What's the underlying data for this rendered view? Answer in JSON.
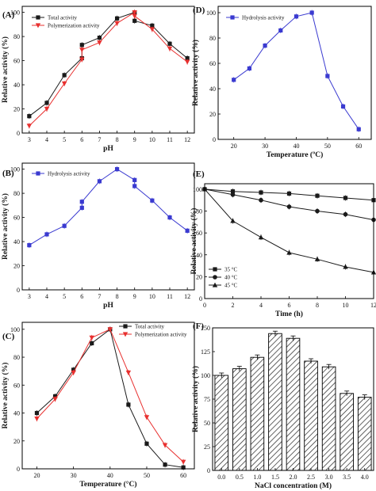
{
  "colors": {
    "black": "#1a1a1a",
    "red": "#e8302f",
    "blue": "#3a3ad0",
    "frame": "#000000",
    "hatch": "#222222"
  },
  "chart_data": [
    {
      "panel": "(A)",
      "type": "line",
      "xlabel": "pH",
      "ylabel": "Relative activity (%)",
      "xlim": [
        2.6,
        12.4
      ],
      "ylim": [
        0,
        105
      ],
      "xticks": [
        3,
        4,
        5,
        6,
        7,
        8,
        9,
        10,
        11,
        12
      ],
      "yticks": [
        0,
        20,
        40,
        60,
        80,
        100
      ],
      "legend_position": "top-left",
      "series": [
        {
          "name": "Total activity",
          "color": "#1a1a1a",
          "marker": "square",
          "x": [
            3,
            4,
            5,
            6,
            6,
            7,
            8,
            9,
            9,
            10,
            11,
            12
          ],
          "y": [
            14,
            25,
            48,
            62,
            73,
            79,
            95,
            100,
            93,
            89,
            74,
            62
          ]
        },
        {
          "name": "Polymerization activity",
          "color": "#e8302f",
          "marker": "triangle-down",
          "x": [
            3,
            4,
            5,
            6,
            6,
            7,
            8,
            9,
            9,
            10,
            11,
            12
          ],
          "y": [
            6,
            20,
            41,
            61,
            69,
            75,
            91,
            100,
            97,
            86,
            70,
            59
          ]
        }
      ]
    },
    {
      "panel": "(B)",
      "type": "line",
      "xlabel": "pH",
      "ylabel": "Relative activity (%)",
      "xlim": [
        2.6,
        12.4
      ],
      "ylim": [
        0,
        105
      ],
      "xticks": [
        3,
        4,
        5,
        6,
        7,
        8,
        9,
        10,
        11,
        12
      ],
      "yticks": [
        0,
        20,
        40,
        60,
        80,
        100
      ],
      "legend_position": "top-left",
      "series": [
        {
          "name": "Hydrolysis activity",
          "color": "#3a3ad0",
          "marker": "square",
          "x": [
            3,
            4,
            5,
            6,
            6,
            7,
            8,
            9,
            9,
            10,
            11,
            12
          ],
          "y": [
            37,
            46,
            53,
            68,
            73,
            90,
            100,
            91,
            86,
            74,
            60,
            49
          ]
        }
      ]
    },
    {
      "panel": "(C)",
      "type": "line",
      "xlabel": "Temperature (°C)",
      "ylabel": "Relative activity (%)",
      "xlim": [
        16,
        63
      ],
      "ylim": [
        0,
        105
      ],
      "xticks": [
        20,
        30,
        40,
        50,
        60
      ],
      "yticks": [
        0,
        20,
        40,
        60,
        80,
        100
      ],
      "legend_position": "top-right",
      "series": [
        {
          "name": "Total activity",
          "color": "#1a1a1a",
          "marker": "square",
          "x": [
            20,
            25,
            30,
            35,
            40,
            45,
            50,
            55,
            60
          ],
          "y": [
            40,
            52,
            71,
            90,
            100,
            46,
            18,
            3,
            1
          ]
        },
        {
          "name": "Polymerization activity",
          "color": "#e8302f",
          "marker": "triangle-down",
          "x": [
            20,
            25,
            30,
            35,
            40,
            45,
            50,
            55,
            60
          ],
          "y": [
            36,
            50,
            69,
            94,
            100,
            69,
            37,
            17,
            5
          ]
        }
      ]
    },
    {
      "panel": "(D)",
      "type": "line",
      "xlabel": "Temperature (ºC)",
      "ylabel": "Relative activity (%)",
      "xlim": [
        15,
        64
      ],
      "ylim": [
        0,
        105
      ],
      "xticks": [
        20,
        30,
        40,
        50,
        60
      ],
      "yticks": [
        0,
        20,
        40,
        60,
        80,
        100
      ],
      "legend_position": "top-left",
      "series": [
        {
          "name": "Hydrolysis activity",
          "color": "#3a3ad0",
          "marker": "square",
          "x": [
            20,
            25,
            30,
            35,
            40,
            45,
            50,
            55,
            60
          ],
          "y": [
            47,
            56,
            74,
            86,
            97,
            100,
            50,
            26,
            8
          ]
        }
      ]
    },
    {
      "panel": "(E)",
      "type": "line",
      "xlabel": "Time (h)",
      "ylabel": "Relative activity (%)",
      "xlim": [
        0,
        12
      ],
      "ylim": [
        0,
        105
      ],
      "xticks": [
        0,
        2,
        4,
        6,
        8,
        10,
        12
      ],
      "xtick_labels": [
        "0",
        "2",
        "4",
        "6",
        "8",
        "10",
        "12"
      ],
      "yticks": [
        0,
        20,
        40,
        60,
        80,
        100
      ],
      "legend_position": "bottom-left",
      "series": [
        {
          "name": "35 °C",
          "color": "#1a1a1a",
          "marker": "square",
          "x": [
            0,
            2,
            4,
            6,
            8,
            10,
            12
          ],
          "y": [
            100,
            98,
            97,
            96,
            94,
            92,
            90
          ]
        },
        {
          "name": "40 °C",
          "color": "#1a1a1a",
          "marker": "circle",
          "x": [
            0,
            2,
            4,
            6,
            8,
            10,
            12
          ],
          "y": [
            100,
            95,
            90,
            84,
            80,
            77,
            72
          ]
        },
        {
          "name": "45 °C",
          "color": "#1a1a1a",
          "marker": "triangle-up",
          "x": [
            0,
            2,
            4,
            6,
            8,
            10,
            12
          ],
          "y": [
            100,
            71,
            56,
            42,
            36,
            29,
            24
          ]
        }
      ]
    },
    {
      "panel": "(F)",
      "type": "bar",
      "xlabel": "NaCl concentration (M)",
      "ylabel": "Relative activity (%)",
      "categories": [
        "0.0",
        "0.5",
        "1.0",
        "1.5",
        "2.0",
        "2.5",
        "3.0",
        "3.5",
        "4.0"
      ],
      "values": [
        100,
        107,
        119,
        144,
        139,
        115,
        109,
        81,
        77
      ],
      "ylim": [
        0,
        150
      ],
      "yticks": [
        0,
        25,
        50,
        75,
        100,
        125,
        150
      ]
    }
  ]
}
